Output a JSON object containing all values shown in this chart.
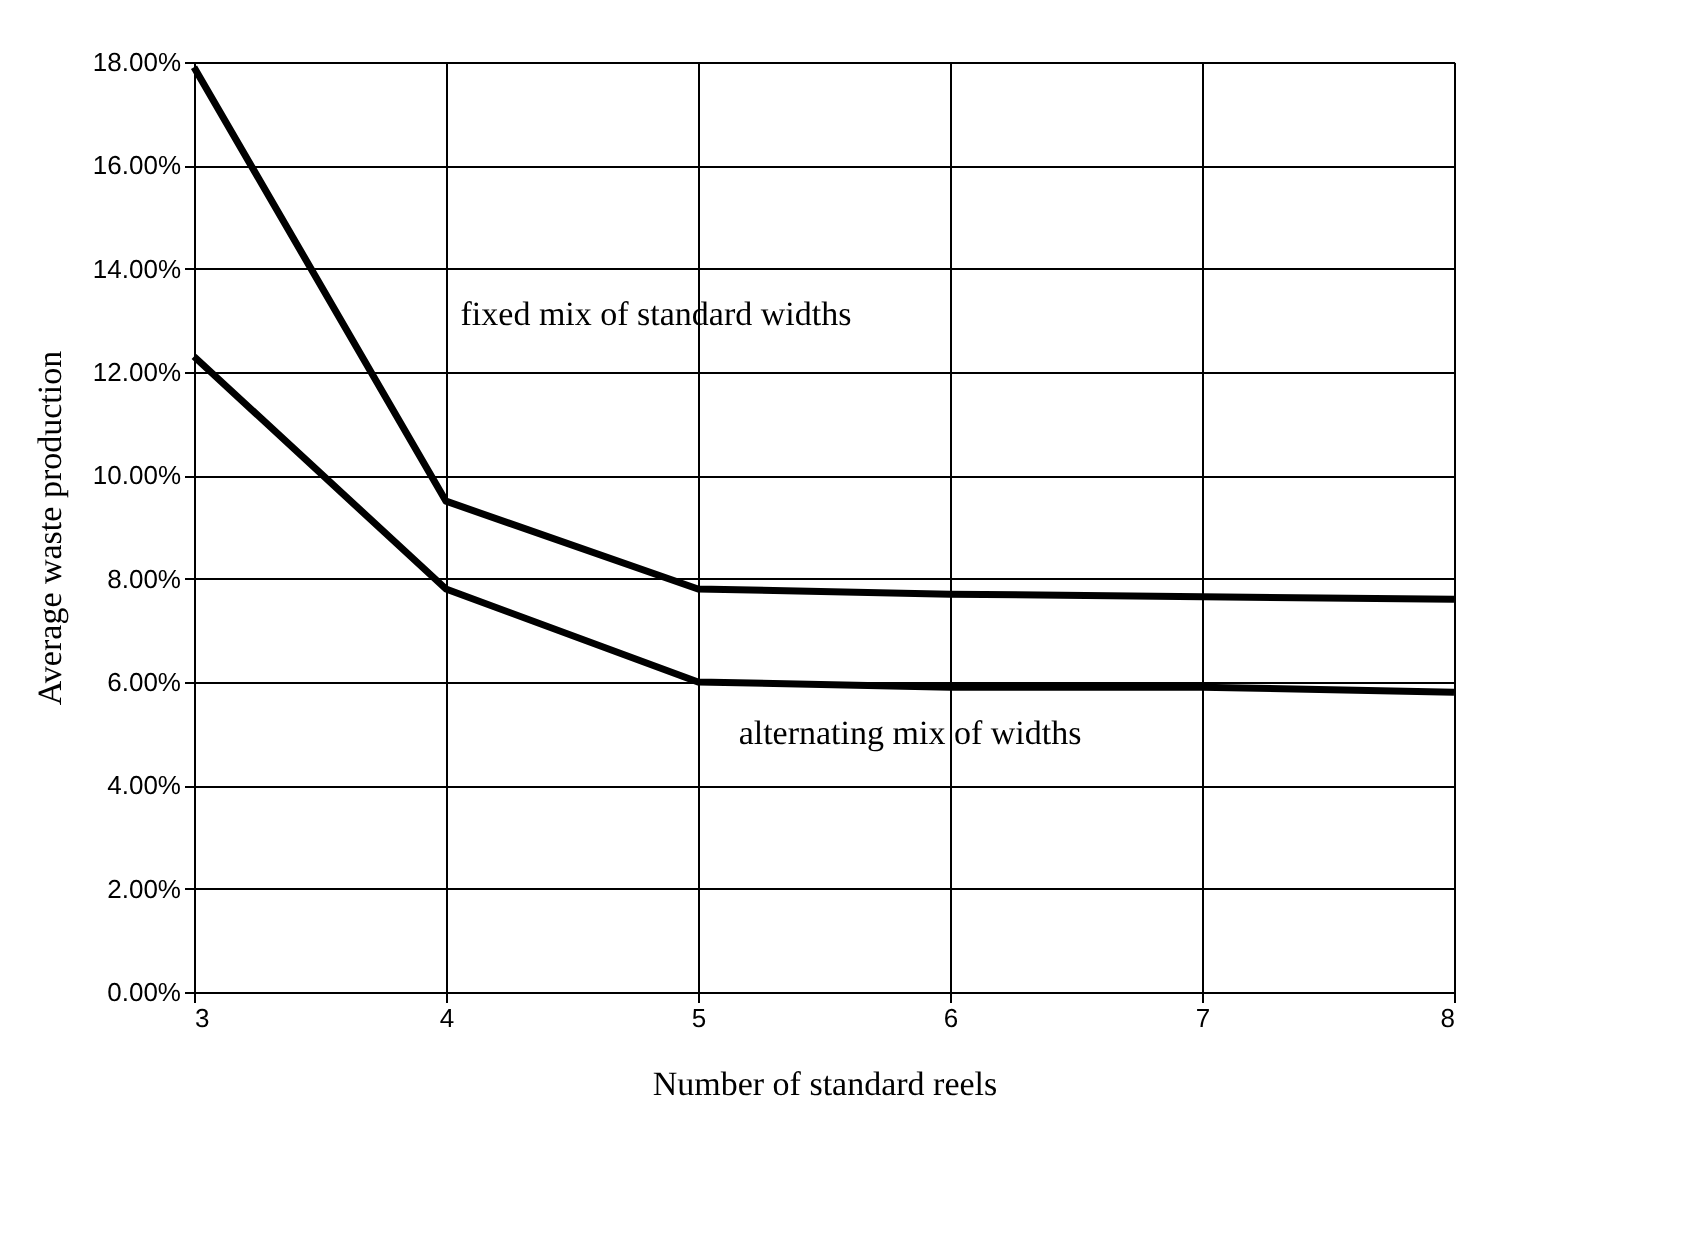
{
  "chart_data": {
    "type": "line",
    "xlabel": "Number of standard reels",
    "ylabel": "Average waste production",
    "x": [
      3,
      4,
      5,
      6,
      7,
      8
    ],
    "series": [
      {
        "name": "fixed mix of standard widths",
        "color": "#000000",
        "values": [
          17.9,
          9.5,
          7.8,
          7.7,
          7.65,
          7.6
        ]
      },
      {
        "name": "alternating mix of widths",
        "color": "#000000",
        "values": [
          12.3,
          7.8,
          6.0,
          5.9,
          5.9,
          5.8
        ]
      }
    ],
    "xlim": [
      3,
      8
    ],
    "xticks": [
      3,
      4,
      5,
      6,
      7,
      8
    ],
    "ylim": [
      0,
      18
    ],
    "yticks": [
      {
        "value": 0,
        "label": "0.00%"
      },
      {
        "value": 2,
        "label": "2.00%"
      },
      {
        "value": 4,
        "label": "4.00%"
      },
      {
        "value": 6,
        "label": "6.00%"
      },
      {
        "value": 8,
        "label": "8.00%"
      },
      {
        "value": 10,
        "label": "10.00%"
      },
      {
        "value": 12,
        "label": "12.00%"
      },
      {
        "value": 14,
        "label": "14.00%"
      },
      {
        "value": 16,
        "label": "16.00%"
      },
      {
        "value": 18,
        "label": "18.00%"
      }
    ],
    "grid": true,
    "legend": false,
    "marker": "none",
    "line_style": "solid"
  }
}
